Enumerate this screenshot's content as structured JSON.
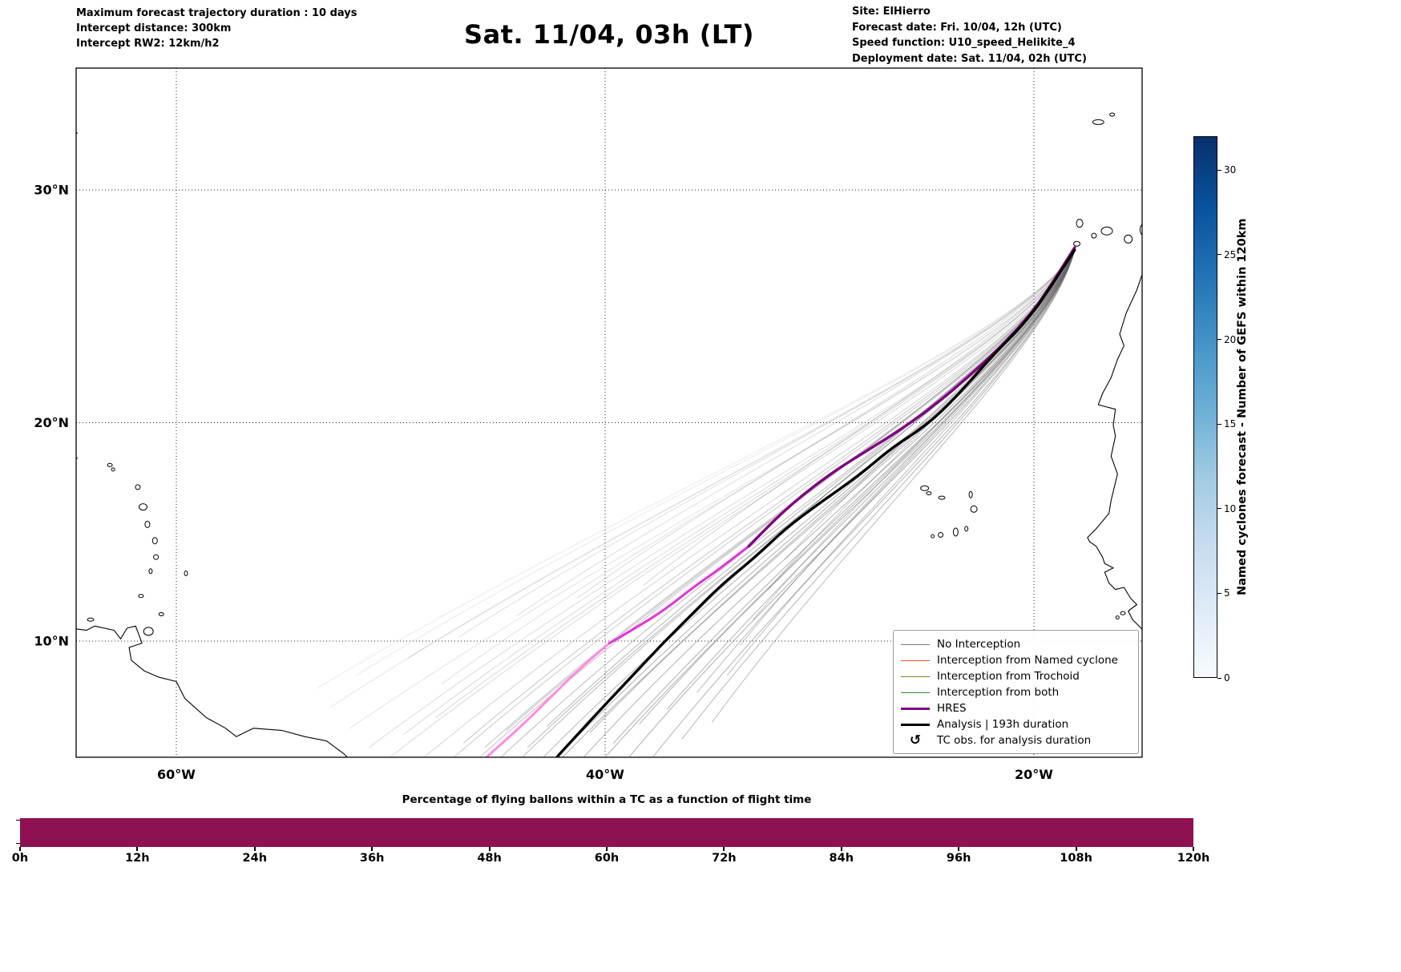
{
  "header": {
    "left": [
      "Maximum forecast trajectory duration : 10 days",
      "Intercept distance: 300km",
      "Intercept RW2: 12km/h2"
    ],
    "title": "Sat. 11/04, 03h (LT)",
    "right": [
      "Site: ElHierro",
      "Forecast date: Fri. 10/04, 12h (UTC)",
      "Speed function: U10_speed_Helikite_4",
      "Deployment date: Sat. 11/04, 02h (UTC)"
    ]
  },
  "map": {
    "lat_ticks": [
      {
        "label": "10°N",
        "value": 10
      },
      {
        "label": "20°N",
        "value": 20
      },
      {
        "label": "30°N",
        "value": 30
      }
    ],
    "lon_ticks": [
      {
        "label": "60°W",
        "value": -60
      },
      {
        "label": "40°W",
        "value": -40
      },
      {
        "label": "20°W",
        "value": -20
      }
    ],
    "coastlines": [
      {
        "name": "africa-west-coast",
        "points": [
          [
            -14.9,
            26.6
          ],
          [
            -15.2,
            25.8
          ],
          [
            -15.7,
            24.8
          ],
          [
            -16.0,
            23.9
          ],
          [
            -15.8,
            23.4
          ],
          [
            -16.1,
            22.8
          ],
          [
            -16.4,
            22.0
          ],
          [
            -16.8,
            21.3
          ],
          [
            -17.0,
            20.8
          ],
          [
            -16.2,
            20.6
          ],
          [
            -16.3,
            19.9
          ],
          [
            -16.2,
            19.4
          ],
          [
            -16.4,
            18.5
          ],
          [
            -16.1,
            17.7
          ],
          [
            -16.4,
            16.5
          ],
          [
            -16.5,
            15.9
          ],
          [
            -17.1,
            15.2
          ],
          [
            -17.5,
            14.8
          ],
          [
            -17.4,
            14.6
          ],
          [
            -17.1,
            14.4
          ],
          [
            -16.8,
            13.9
          ],
          [
            -16.7,
            13.6
          ],
          [
            -16.3,
            13.4
          ],
          [
            -16.7,
            13.2
          ],
          [
            -16.5,
            12.7
          ],
          [
            -16.2,
            12.4
          ],
          [
            -15.8,
            12.5
          ],
          [
            -15.5,
            12.0
          ],
          [
            -15.2,
            11.7
          ],
          [
            -15.6,
            11.4
          ],
          [
            -15.4,
            11.0
          ],
          [
            -15.1,
            10.7
          ],
          [
            -14.9,
            10.5
          ]
        ]
      },
      {
        "name": "south-america-north-coast",
        "points": [
          [
            -64.9,
            10.6
          ],
          [
            -64.2,
            10.5
          ],
          [
            -63.8,
            10.7
          ],
          [
            -62.9,
            10.5
          ],
          [
            -62.6,
            10.1
          ],
          [
            -62.3,
            10.6
          ],
          [
            -61.9,
            10.7
          ],
          [
            -61.6,
            9.9
          ],
          [
            -62.2,
            9.7
          ],
          [
            -62.1,
            9.1
          ],
          [
            -61.5,
            8.6
          ],
          [
            -60.8,
            8.3
          ],
          [
            -60.0,
            8.1
          ],
          [
            -59.6,
            7.3
          ],
          [
            -58.6,
            6.4
          ],
          [
            -57.7,
            5.9
          ],
          [
            -57.2,
            5.5
          ],
          [
            -56.4,
            5.9
          ],
          [
            -55.1,
            5.8
          ],
          [
            -54.0,
            5.5
          ],
          [
            -53.0,
            5.3
          ],
          [
            -52.2,
            4.7
          ],
          [
            -51.7,
            4.2
          ]
        ]
      },
      {
        "name": "bermuda",
        "points": [
          [
            -64.9,
            32.4
          ],
          [
            -64.6,
            32.3
          ]
        ]
      },
      {
        "name": "virgin-islands",
        "points": [
          [
            -64.9,
            18.5
          ],
          [
            -64.6,
            18.4
          ]
        ]
      }
    ],
    "islands": [
      [
        -17.0,
        32.75,
        7,
        3
      ],
      [
        -16.35,
        33.05,
        3,
        2
      ],
      [
        -17.87,
        28.62,
        4,
        5
      ],
      [
        -18.0,
        27.76,
        4,
        3
      ],
      [
        -17.2,
        28.1,
        3,
        3
      ],
      [
        -16.6,
        28.3,
        7,
        5
      ],
      [
        -15.6,
        27.96,
        5,
        5
      ],
      [
        -14.75,
        28.35,
        8,
        9
      ],
      [
        -25.1,
        17.05,
        5,
        3
      ],
      [
        -24.9,
        16.82,
        3,
        2
      ],
      [
        -24.3,
        16.62,
        4,
        2
      ],
      [
        -22.95,
        16.76,
        2,
        4
      ],
      [
        -22.8,
        16.1,
        4,
        4
      ],
      [
        -23.15,
        15.2,
        2,
        3
      ],
      [
        -23.65,
        15.05,
        3,
        5
      ],
      [
        -24.35,
        14.92,
        3,
        3
      ],
      [
        -24.72,
        14.86,
        2,
        2
      ],
      [
        -63.1,
        18.1,
        3,
        2
      ],
      [
        -62.95,
        17.9,
        2,
        2
      ],
      [
        -61.8,
        17.1,
        3,
        3
      ],
      [
        -61.55,
        16.2,
        5,
        4
      ],
      [
        -61.35,
        15.4,
        3,
        4
      ],
      [
        -61.0,
        14.65,
        3,
        4
      ],
      [
        -60.95,
        13.9,
        3,
        3
      ],
      [
        -61.2,
        13.25,
        2,
        3
      ],
      [
        -61.65,
        12.1,
        3,
        2
      ],
      [
        -59.55,
        13.15,
        2,
        3
      ],
      [
        -60.7,
        11.25,
        3,
        2
      ],
      [
        -61.3,
        10.45,
        6,
        5
      ],
      [
        -64.0,
        11.0,
        4,
        2
      ],
      [
        -15.85,
        11.3,
        3,
        2
      ],
      [
        -16.1,
        11.1,
        2,
        2
      ]
    ]
  },
  "legend": {
    "items": [
      {
        "label": "No Interception",
        "color": "#7f7f7f",
        "line_width": 1.2
      },
      {
        "label": "Interception from Named cyclone",
        "color": "#ff4f30",
        "line_width": 1.6
      },
      {
        "label": "Interception from Trochoid",
        "color": "#8f7c2a",
        "line_width": 1.6
      },
      {
        "label": "Interception from both",
        "color": "#2e8b34",
        "line_width": 1.6
      },
      {
        "label": "HRES",
        "color": "#800080",
        "line_width": 3.5
      },
      {
        "label": "Analysis | 193h duration",
        "color": "#000000",
        "line_width": 3.5
      },
      {
        "label": "TC obs. for analysis duration",
        "symbol": "↺"
      }
    ]
  },
  "colorbar": {
    "label": "Named cyclones forecast - Number of GEFS within 120km",
    "ticks": [
      0,
      5,
      10,
      15,
      20,
      25,
      30
    ],
    "max": 32,
    "stops": [
      "#f7fbff",
      "#deebf7",
      "#c6dbef",
      "#9ecae1",
      "#6baed6",
      "#4292c6",
      "#2171b5",
      "#08519c",
      "#08306b"
    ]
  },
  "chart_data": [
    {
      "type": "line",
      "title": "Balloon forecast trajectories from ElHierro",
      "x_ticks": [
        "60°W",
        "40°W",
        "20°W"
      ],
      "y_ticks": [
        "10°N",
        "20°N",
        "30°N"
      ],
      "lon_range": [
        -64.7,
        -14.9
      ],
      "lat_range": [
        4.3,
        34.9
      ],
      "start_point": [
        -18.1,
        27.5
      ],
      "series": [
        {
          "name": "GEFS ensemble (No Interception)",
          "color": "#616161",
          "line_width": 1.1,
          "start": [
            -18.1,
            27.5
          ],
          "c1_fraction": [
            0.07,
            0.2
          ],
          "members": [
            [
              -52.8,
              6.9,
              0.53,
              0.48,
              0.15
            ],
            [
              -53.4,
              7.8,
              0.55,
              0.51,
              0.13
            ],
            [
              -51.9,
              5.9,
              0.51,
              0.47,
              0.17
            ],
            [
              -51.0,
              5.0,
              0.5,
              0.45,
              0.2
            ],
            [
              -50.2,
              4.4,
              0.49,
              0.44,
              0.22
            ],
            [
              -49.4,
              5.6,
              0.53,
              0.48,
              0.22
            ],
            [
              -48.6,
              4.4,
              0.5,
              0.45,
              0.26
            ],
            [
              -47.9,
              6.4,
              0.54,
              0.5,
              0.24
            ],
            [
              -47.2,
              4.4,
              0.51,
              0.46,
              0.3
            ],
            [
              -46.6,
              5.2,
              0.53,
              0.48,
              0.33
            ],
            [
              -46.1,
              4.3,
              0.49,
              0.44,
              0.36
            ],
            [
              -45.6,
              5.0,
              0.55,
              0.5,
              0.36
            ],
            [
              -45.1,
              4.3,
              0.52,
              0.47,
              0.38
            ],
            [
              -44.6,
              5.8,
              0.56,
              0.52,
              0.38
            ],
            [
              -44.1,
              4.3,
              0.5,
              0.45,
              0.4
            ],
            [
              -43.6,
              5.0,
              0.54,
              0.5,
              0.42
            ],
            [
              -43.1,
              4.3,
              0.57,
              0.52,
              0.42
            ],
            [
              -42.7,
              6.0,
              0.52,
              0.48,
              0.42
            ],
            [
              -42.2,
              4.3,
              0.55,
              0.51,
              0.45
            ],
            [
              -41.7,
              5.1,
              0.5,
              0.46,
              0.45
            ],
            [
              -41.2,
              4.3,
              0.58,
              0.53,
              0.45
            ],
            [
              -40.7,
              5.7,
              0.53,
              0.49,
              0.45
            ],
            [
              -40.2,
              4.3,
              0.56,
              0.52,
              0.47
            ],
            [
              -39.6,
              5.2,
              0.51,
              0.47,
              0.47
            ],
            [
              -39.0,
              4.4,
              0.58,
              0.54,
              0.47
            ],
            [
              -38.4,
              6.1,
              0.54,
              0.5,
              0.45
            ],
            [
              -37.8,
              4.5,
              0.57,
              0.53,
              0.45
            ],
            [
              -37.1,
              6.8,
              0.52,
              0.49,
              0.43
            ],
            [
              -36.4,
              5.4,
              0.59,
              0.55,
              0.43
            ],
            [
              -35.7,
              7.6,
              0.55,
              0.51,
              0.4
            ],
            [
              -35.0,
              6.2,
              0.58,
              0.54,
              0.4
            ],
            [
              -34.3,
              8.4,
              0.54,
              0.51,
              0.38
            ],
            [
              -33.7,
              9.8,
              0.6,
              0.56,
              0.36
            ],
            [
              -33.1,
              11.0,
              0.56,
              0.53,
              0.34
            ],
            [
              -35.9,
              11.2,
              0.58,
              0.55,
              0.3
            ],
            [
              -32.4,
              12.4,
              0.57,
              0.54,
              0.33
            ],
            [
              -31.6,
              13.8,
              0.55,
              0.53,
              0.33
            ],
            [
              -38.2,
              12.6,
              0.61,
              0.58,
              0.26
            ],
            [
              -41.3,
              12.0,
              0.6,
              0.57,
              0.22
            ],
            [
              -44.1,
              11.2,
              0.59,
              0.56,
              0.2
            ],
            [
              -46.8,
              10.2,
              0.58,
              0.55,
              0.18
            ],
            [
              -49.2,
              9.2,
              0.57,
              0.54,
              0.15
            ],
            [
              -51.6,
              8.4,
              0.56,
              0.52,
              0.13
            ],
            [
              -47.6,
              8.0,
              0.55,
              0.5,
              0.18
            ]
          ]
        },
        {
          "name": "HRES extension (light pink segment)",
          "color": "#ff8ae2",
          "line_width": 3.0,
          "points": [
            [
              -39.8,
              9.9
            ],
            [
              -41.1,
              8.8
            ],
            [
              -42.4,
              7.5
            ],
            [
              -43.7,
              6.2
            ],
            [
              -44.9,
              5.1
            ],
            [
              -45.9,
              4.2
            ]
          ]
        },
        {
          "name": "HRES extension (magenta segment)",
          "color": "#e534d6",
          "line_width": 3.0,
          "points": [
            [
              -33.3,
              14.4
            ],
            [
              -34.6,
              13.4
            ],
            [
              -35.9,
              12.5
            ],
            [
              -37.3,
              11.4
            ],
            [
              -38.6,
              10.6
            ],
            [
              -39.8,
              9.9
            ]
          ]
        },
        {
          "name": "HRES",
          "color": "#800080",
          "line_width": 3.4,
          "points": [
            [
              -18.1,
              27.6
            ],
            [
              -19.2,
              26.0
            ],
            [
              -20.2,
              24.7
            ],
            [
              -21.6,
              23.3
            ],
            [
              -23.1,
              22.0
            ],
            [
              -24.6,
              20.8
            ],
            [
              -26.2,
              19.7
            ],
            [
              -27.7,
              18.8
            ],
            [
              -29.2,
              17.9
            ],
            [
              -30.6,
              16.9
            ],
            [
              -31.9,
              15.8
            ],
            [
              -33.3,
              14.4
            ]
          ]
        },
        {
          "name": "Analysis | 193h duration",
          "color": "#000000",
          "line_width": 3.4,
          "points": [
            [
              -18.1,
              27.5
            ],
            [
              -19.3,
              25.8
            ],
            [
              -20.4,
              24.4
            ],
            [
              -21.9,
              23.0
            ],
            [
              -23.2,
              21.6
            ],
            [
              -24.3,
              20.5
            ],
            [
              -25.3,
              19.7
            ],
            [
              -26.6,
              18.9
            ],
            [
              -28.2,
              17.6
            ],
            [
              -30.1,
              16.3
            ],
            [
              -31.6,
              15.2
            ],
            [
              -33.0,
              13.9
            ],
            [
              -34.6,
              12.6
            ],
            [
              -36.0,
              11.2
            ],
            [
              -37.4,
              9.8
            ],
            [
              -38.8,
              8.3
            ],
            [
              -40.1,
              6.9
            ],
            [
              -41.2,
              5.7
            ],
            [
              -42.2,
              4.6
            ],
            [
              -42.6,
              4.1
            ]
          ]
        }
      ]
    },
    {
      "type": "bar",
      "title": "Percentage of flying ballons within a TC as a function of flight time",
      "categories": [
        "0h",
        "12h",
        "24h",
        "36h",
        "48h",
        "60h",
        "72h",
        "84h",
        "96h",
        "108h",
        "120h"
      ],
      "values": [
        100,
        100,
        100,
        100,
        100,
        100,
        100,
        100,
        100,
        100,
        100
      ],
      "ylabel": "",
      "xlabel": "",
      "ylim": [
        0,
        100
      ],
      "bar_color": "#8e1152"
    }
  ]
}
